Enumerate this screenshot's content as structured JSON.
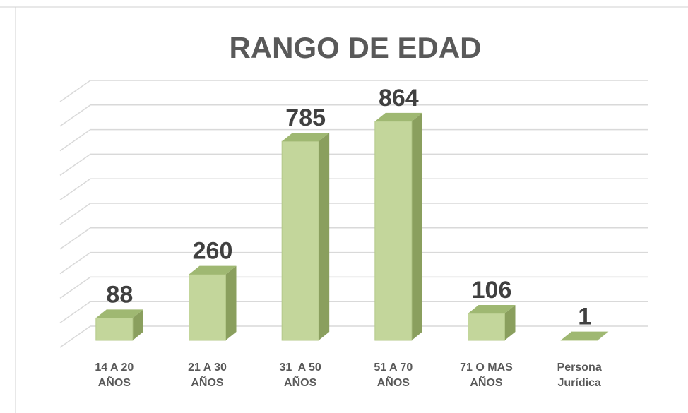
{
  "chart_data": {
    "type": "bar3d",
    "title": "RANGO DE EDAD",
    "categories": [
      "14 A 20\nAÑOS",
      "21 A 30\nAÑOS",
      "31  A 50\nAÑOS",
      "51 A 70\nAÑOS",
      "71 O MAS\nAÑOS",
      "Persona\nJurídica"
    ],
    "values": [
      88,
      260,
      785,
      864,
      106,
      1
    ],
    "color": "#c3d69b",
    "ylim": [
      0,
      1000
    ],
    "yticks": [
      0,
      100,
      200,
      300,
      400,
      500,
      600,
      700,
      800,
      900,
      1000
    ],
    "grid": true
  }
}
